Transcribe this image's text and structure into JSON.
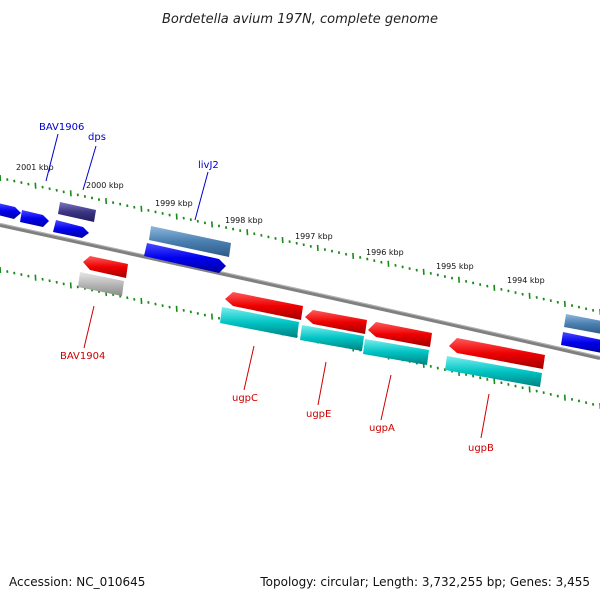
{
  "title": "Bordetella avium 197N, complete genome",
  "footer": {
    "accession": "Accession: NC_010645",
    "topology": "Topology: circular; Length: 3,732,255 bp; Genes: 3,455"
  },
  "ruler": [
    "2001 kbp",
    "2000 kbp",
    "1999 kbp",
    "1998 kbp",
    "1997 kbp",
    "1996 kbp",
    "1995 kbp",
    "1994 kbp"
  ],
  "genes_forward": [
    "BAV1906",
    "dps",
    "livJ2"
  ],
  "genes_reverse": [
    "BAV1904",
    "ugpC",
    "ugpE",
    "ugpA",
    "ugpB"
  ],
  "colors": {
    "backbone": "#777777",
    "tick": "#1a8a1a",
    "cds_forward": "#0000ee",
    "feature_forward": "#4a7fb0",
    "feature_dark": "#3b3585",
    "cds_reverse": "#ee0000",
    "feature_reverse": "#00c4c4",
    "feature_gray": "#b0b0b0",
    "label_forward": "#0000cc",
    "label_reverse": "#cc0000"
  }
}
